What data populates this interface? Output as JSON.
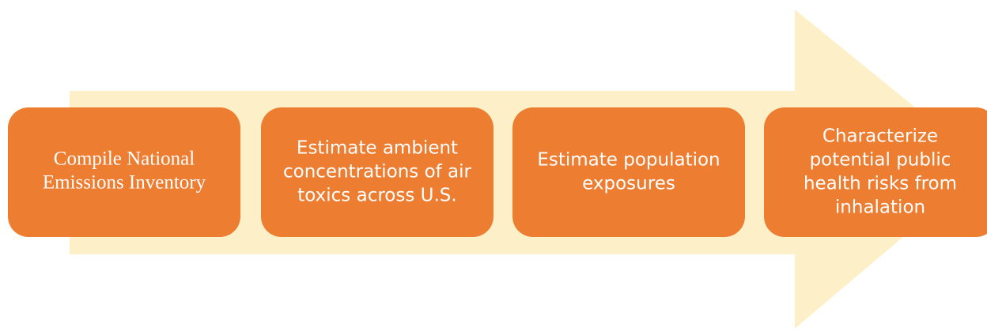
{
  "steps": [
    {
      "label": [
        "Compile National",
        "Emissions Inventory"
      ]
    },
    {
      "label": [
        "Estimate ambient",
        "concentrations of air",
        "toxics across U.S."
      ]
    },
    {
      "label": [
        "Estimate population",
        "exposures"
      ]
    },
    {
      "label": [
        "Characterize",
        "potential public",
        "health risks from",
        "inhalation"
      ]
    }
  ]
}
